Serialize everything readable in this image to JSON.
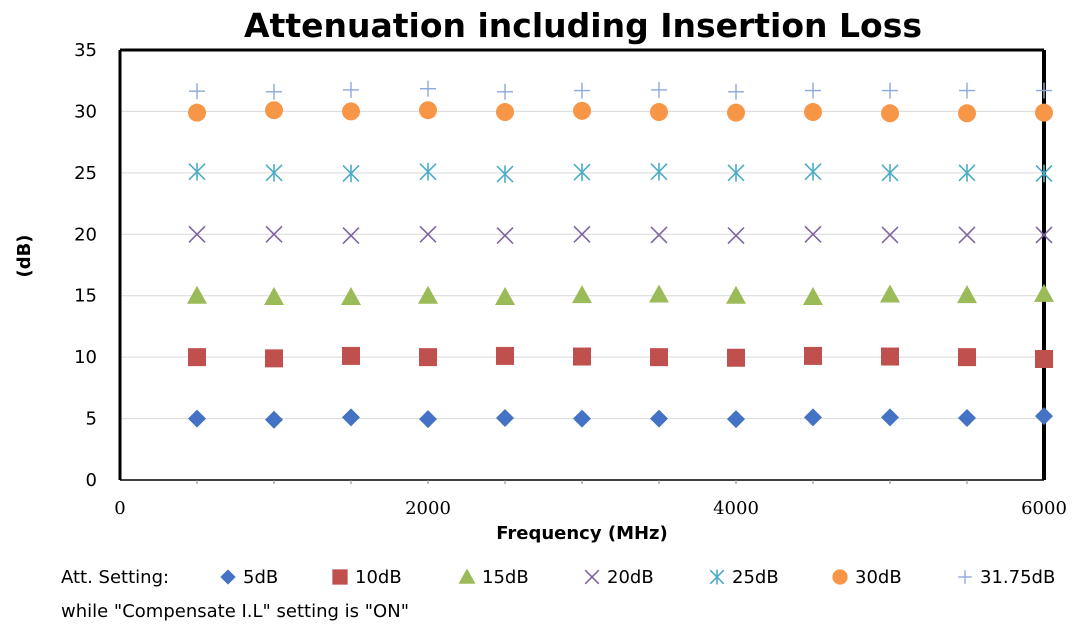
{
  "chart_data": {
    "type": "scatter",
    "title": "Attenuation including Insertion Loss",
    "xlabel": "Frequency (MHz)",
    "ylabel": "(dB)",
    "xlim": [
      0,
      6000
    ],
    "ylim": [
      0,
      35
    ],
    "xticks": [
      "0",
      "2000",
      "4000",
      "6000"
    ],
    "yticks": [
      "0",
      "5",
      "10",
      "15",
      "20",
      "25",
      "30",
      "35"
    ],
    "grid": true,
    "legend_position": "bottom",
    "legend_prefix": "Att. Setting:",
    "note": "while \"Compensate I.L\" setting is \"ON\"",
    "x": [
      500,
      1000,
      1500,
      2000,
      2500,
      3000,
      3500,
      4000,
      4500,
      5000,
      5500,
      6000
    ],
    "series": [
      {
        "name": "5dB",
        "marker": "diamond",
        "color": "#4472C4",
        "values": [
          5.0,
          4.9,
          5.1,
          4.95,
          5.05,
          5.0,
          5.0,
          4.95,
          5.1,
          5.1,
          5.05,
          5.2
        ]
      },
      {
        "name": "10dB",
        "marker": "square",
        "color": "#C0504D",
        "values": [
          10.0,
          9.9,
          10.1,
          10.0,
          10.1,
          10.05,
          10.0,
          9.95,
          10.1,
          10.05,
          10.0,
          9.85
        ]
      },
      {
        "name": "15dB",
        "marker": "triangle",
        "color": "#9BBB59",
        "values": [
          15.0,
          14.9,
          14.9,
          15.0,
          14.9,
          15.05,
          15.1,
          15.0,
          14.9,
          15.1,
          15.05,
          15.15
        ]
      },
      {
        "name": "20dB",
        "marker": "x",
        "color": "#8064A2",
        "values": [
          20.0,
          20.0,
          19.9,
          20.0,
          19.9,
          20.0,
          19.95,
          19.9,
          20.0,
          19.95,
          19.95,
          19.95
        ]
      },
      {
        "name": "25dB",
        "marker": "star",
        "color": "#4BACC6",
        "values": [
          25.1,
          25.0,
          24.95,
          25.1,
          24.9,
          25.05,
          25.1,
          25.0,
          25.1,
          25.0,
          25.0,
          24.95
        ]
      },
      {
        "name": "30dB",
        "marker": "circle",
        "color": "#F79646",
        "values": [
          29.9,
          30.1,
          30.0,
          30.1,
          29.95,
          30.05,
          29.95,
          29.9,
          29.95,
          29.85,
          29.85,
          29.9
        ]
      },
      {
        "name": "31.75dB",
        "marker": "plus",
        "color": "#8EA9DB",
        "values": [
          31.65,
          31.6,
          31.75,
          31.85,
          31.6,
          31.7,
          31.75,
          31.6,
          31.7,
          31.7,
          31.7,
          31.7
        ]
      }
    ]
  }
}
